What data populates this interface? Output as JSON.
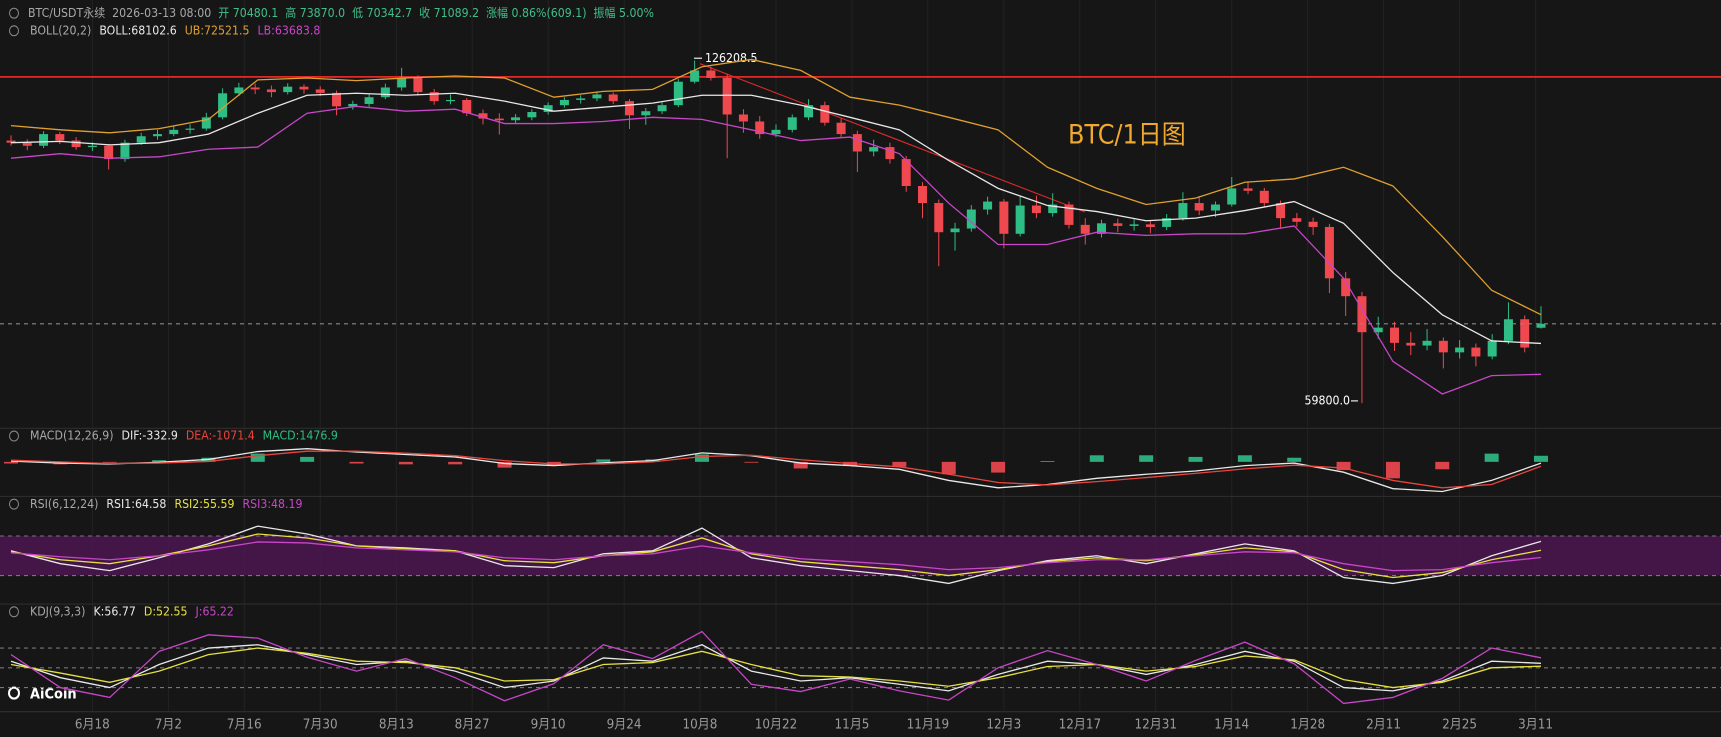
{
  "header": {
    "items": [
      "BTC/USDT永续",
      "2026-03-13 08:00",
      "开 70480.1",
      "高 73870.0",
      "低 70342.7",
      "收 71089.2",
      "涨幅 0.86%(609.1)",
      "振幅 5.00%"
    ]
  },
  "logo": "AiCoin",
  "chart_data": [
    {
      "type": "candlestick",
      "indicator": "BOLL(20,2)",
      "log": true,
      "ylim": [
        56600,
        144000
      ],
      "up_color": "#2ebd85",
      "down_color": "#f0484f",
      "watermark": "BTC/1日图",
      "high_label": "126208.5",
      "low_label": "59800.0",
      "xticks": [
        {
          "value": 5,
          "label": "6月18"
        },
        {
          "value": 9.67,
          "label": "7月2"
        },
        {
          "value": 14.33,
          "label": "7月16"
        },
        {
          "value": 19,
          "label": "7月30"
        },
        {
          "value": 23.67,
          "label": "8月13"
        },
        {
          "value": 28.33,
          "label": "8月27"
        },
        {
          "value": 33,
          "label": "9月10"
        },
        {
          "value": 37.67,
          "label": "9月24"
        },
        {
          "value": 42.33,
          "label": "10月8"
        },
        {
          "value": 47,
          "label": "10月22"
        },
        {
          "value": 51.67,
          "label": "11月5"
        },
        {
          "value": 56.33,
          "label": "11月19"
        },
        {
          "value": 61,
          "label": "12月3"
        },
        {
          "value": 65.67,
          "label": "12月17"
        },
        {
          "value": 70.33,
          "label": "12月31"
        },
        {
          "value": 75,
          "label": "1月14"
        },
        {
          "value": 79.67,
          "label": "1月28"
        },
        {
          "value": 84.33,
          "label": "2月11"
        },
        {
          "value": 89,
          "label": "2月25"
        },
        {
          "value": 93.67,
          "label": "3月11"
        }
      ],
      "ohlc": [
        [
          106000,
          107200,
          104800,
          105500
        ],
        [
          105500,
          106300,
          103800,
          104800
        ],
        [
          104800,
          108200,
          104300,
          107500
        ],
        [
          107500,
          108000,
          105200,
          106000
        ],
        [
          106000,
          106800,
          103900,
          104500
        ],
        [
          104500,
          105600,
          103600,
          104800
        ],
        [
          104800,
          105200,
          99500,
          101800
        ],
        [
          101800,
          106200,
          101200,
          105500
        ],
        [
          105500,
          107800,
          105000,
          107000
        ],
        [
          107000,
          108500,
          106200,
          107500
        ],
        [
          107500,
          109400,
          107000,
          108500
        ],
        [
          108500,
          109800,
          107600,
          108800
        ],
        [
          108800,
          112600,
          108300,
          111500
        ],
        [
          111500,
          118800,
          111000,
          117500
        ],
        [
          117500,
          120200,
          116800,
          119000
        ],
        [
          119000,
          120000,
          117300,
          118500
        ],
        [
          118500,
          119500,
          116500,
          117800
        ],
        [
          117800,
          120100,
          117200,
          119200
        ],
        [
          119200,
          119800,
          117400,
          118500
        ],
        [
          118500,
          119300,
          116800,
          117600
        ],
        [
          117600,
          118200,
          112000,
          114200
        ],
        [
          114200,
          115600,
          113400,
          114800
        ],
        [
          114800,
          117300,
          114100,
          116500
        ],
        [
          116500,
          120000,
          116000,
          119000
        ],
        [
          119000,
          124200,
          118200,
          121500
        ],
        [
          121500,
          122200,
          116900,
          117800
        ],
        [
          117800,
          118600,
          114600,
          115500
        ],
        [
          115500,
          117200,
          114700,
          115800
        ],
        [
          115800,
          116300,
          111800,
          112500
        ],
        [
          112500,
          113400,
          109800,
          111200
        ],
        [
          111200,
          112500,
          107400,
          110800
        ],
        [
          110800,
          112300,
          110000,
          111500
        ],
        [
          111500,
          113500,
          110800,
          112800
        ],
        [
          112800,
          115200,
          112200,
          114500
        ],
        [
          114500,
          116500,
          113900,
          115800
        ],
        [
          115800,
          117000,
          114900,
          116200
        ],
        [
          116200,
          118000,
          115500,
          117200
        ],
        [
          117200,
          117700,
          114800,
          115500
        ],
        [
          115500,
          116000,
          108700,
          112000
        ],
        [
          112000,
          113800,
          109700,
          113000
        ],
        [
          113000,
          115200,
          112300,
          114500
        ],
        [
          114500,
          121200,
          114000,
          120500
        ],
        [
          120500,
          126208.5,
          120000,
          123500
        ],
        [
          123500,
          124500,
          120800,
          121500
        ],
        [
          121500,
          122500,
          102000,
          112200
        ],
        [
          112200,
          113500,
          107800,
          110500
        ],
        [
          110500,
          111800,
          106400,
          107500
        ],
        [
          107500,
          109800,
          106800,
          108500
        ],
        [
          108500,
          112200,
          107900,
          111500
        ],
        [
          111500,
          116000,
          110800,
          114500
        ],
        [
          114500,
          115400,
          109500,
          110200
        ],
        [
          110200,
          111200,
          106600,
          107500
        ],
        [
          107500,
          108300,
          99000,
          103500
        ],
        [
          103500,
          106200,
          102400,
          104500
        ],
        [
          104500,
          105500,
          100800,
          101800
        ],
        [
          101800,
          102500,
          94800,
          96000
        ],
        [
          96000,
          96800,
          89500,
          92500
        ],
        [
          92500,
          93200,
          80600,
          86800
        ],
        [
          86800,
          88600,
          83400,
          87500
        ],
        [
          87500,
          92100,
          86900,
          91200
        ],
        [
          91200,
          93800,
          90200,
          92800
        ],
        [
          92800,
          93300,
          83800,
          86500
        ],
        [
          86500,
          93900,
          86000,
          92000
        ],
        [
          92000,
          94000,
          89500,
          90500
        ],
        [
          90500,
          94500,
          89800,
          92200
        ],
        [
          92200,
          92800,
          87500,
          88200
        ],
        [
          88200,
          89500,
          84500,
          86500
        ],
        [
          86500,
          89200,
          85800,
          88500
        ],
        [
          88500,
          89400,
          86800,
          88000
        ],
        [
          88000,
          89300,
          87100,
          88300
        ],
        [
          88300,
          88900,
          86600,
          87800
        ],
        [
          87800,
          90300,
          87200,
          89500
        ],
        [
          89500,
          94700,
          89000,
          92500
        ],
        [
          92500,
          93900,
          90100,
          91000
        ],
        [
          91000,
          92800,
          89700,
          92200
        ],
        [
          92200,
          97900,
          91800,
          95500
        ],
        [
          95500,
          97000,
          94300,
          95000
        ],
        [
          95000,
          95600,
          91800,
          92500
        ],
        [
          92500,
          93000,
          87500,
          89500
        ],
        [
          89500,
          90500,
          87800,
          88800
        ],
        [
          88800,
          89600,
          86300,
          87800
        ],
        [
          87800,
          88400,
          76000,
          78500
        ],
        [
          78500,
          79600,
          72300,
          75500
        ],
        [
          75500,
          76200,
          59800,
          69800
        ],
        [
          69800,
          72200,
          68800,
          70500
        ],
        [
          70500,
          71400,
          67000,
          68200
        ],
        [
          68200,
          69800,
          66400,
          67800
        ],
        [
          67800,
          70300,
          67100,
          68500
        ],
        [
          68500,
          69000,
          64500,
          66800
        ],
        [
          66800,
          68600,
          65900,
          67500
        ],
        [
          67500,
          68100,
          64800,
          66200
        ],
        [
          66200,
          69500,
          65800,
          68500
        ],
        [
          68500,
          74500,
          68000,
          71800
        ],
        [
          71800,
          72400,
          66800,
          67500
        ],
        [
          70480.1,
          73870.0,
          70342.7,
          71089.2
        ]
      ],
      "lines": [
        {
          "label": "BOLL:68102.6",
          "color": "#e8e8e8",
          "values": [
            105500,
            105800,
            105000,
            105500,
            107500,
            112500,
            117000,
            117500,
            117000,
            117500,
            115500,
            113000,
            114000,
            115000,
            117000,
            117000,
            114500,
            111500,
            108500,
            101500,
            95500,
            92000,
            90800,
            89000,
            89500,
            91000,
            92800,
            88500,
            79500,
            72500,
            68500,
            68102.6
          ]
        },
        {
          "label": "UB:72521.5",
          "color": "#e0a030",
          "values": [
            109500,
            108500,
            107800,
            108800,
            111000,
            121000,
            121500,
            120800,
            121500,
            122000,
            121500,
            116500,
            118000,
            118500,
            124500,
            126500,
            123500,
            116500,
            114500,
            111500,
            108500,
            100000,
            95500,
            92200,
            93500,
            96800,
            97500,
            100000,
            96000,
            86000,
            76500,
            72521.5
          ]
        },
        {
          "label": "LB:63683.8",
          "color": "#c846c8",
          "values": [
            102000,
            103000,
            102000,
            102300,
            104000,
            104500,
            112500,
            114200,
            113000,
            113500,
            110000,
            110000,
            110500,
            111500,
            111000,
            108500,
            106000,
            106800,
            103000,
            92500,
            84500,
            84500,
            86800,
            86200,
            86500,
            86500,
            88000,
            78500,
            65500,
            61000,
            63500,
            63683.8
          ]
        }
      ]
    },
    {
      "type": "macd",
      "indicator": "MACD(12,26,9)",
      "ylim": [
        -10000,
        6000
      ],
      "lines": [
        {
          "label": "DIF:-332.9",
          "color": "#e8e8e8",
          "values": [
            200,
            -300,
            -500,
            -100,
            600,
            2500,
            3200,
            2400,
            1800,
            1200,
            -400,
            -900,
            -200,
            300,
            2200,
            1500,
            -300,
            -900,
            -1800,
            -4500,
            -6300,
            -5500,
            -4000,
            -3000,
            -2200,
            -900,
            -300,
            -2500,
            -6500,
            -7200,
            -4500,
            -332.9
          ]
        },
        {
          "label": "DEA:-1071.4",
          "color": "#e8453c",
          "values": [
            400,
            0,
            -400,
            -300,
            100,
            1500,
            2600,
            2600,
            2100,
            1500,
            300,
            -500,
            -500,
            0,
            1300,
            1600,
            500,
            -400,
            -1200,
            -3000,
            -5000,
            -5600,
            -4800,
            -3800,
            -2800,
            -1700,
            -800,
            -1500,
            -4500,
            -6300,
            -5500,
            -1071.4
          ]
        }
      ],
      "histogram": {
        "label": "MACD:1476.9",
        "up_color": "#2ebd85",
        "down_color": "#f0484f",
        "values": [
          -400,
          -600,
          -200,
          400,
          1000,
          2000,
          1200,
          -400,
          -600,
          -600,
          -1400,
          -800,
          600,
          600,
          1800,
          -200,
          -1600,
          -1000,
          -1200,
          -3000,
          -2600,
          200,
          1600,
          1600,
          1200,
          1600,
          1000,
          -2000,
          -4000,
          -1800,
          2000,
          1476.9
        ]
      }
    },
    {
      "type": "line",
      "indicator": "RSI(6,12,24)",
      "ylim": [
        0,
        100
      ],
      "band": [
        30,
        70
      ],
      "band_color": "#4b1650",
      "dashed": [
        30,
        70
      ],
      "lines": [
        {
          "label": "RSI1:64.58",
          "color": "#e8e8e8",
          "values": [
            55,
            42,
            35,
            48,
            62,
            80,
            72,
            60,
            58,
            55,
            40,
            38,
            52,
            55,
            78,
            48,
            40,
            35,
            30,
            22,
            35,
            45,
            50,
            42,
            52,
            62,
            55,
            28,
            22,
            30,
            50,
            64.58
          ]
        },
        {
          "label": "RSI2:55.59",
          "color": "#e6e040",
          "values": [
            54,
            46,
            42,
            50,
            60,
            72,
            68,
            60,
            57,
            55,
            45,
            43,
            50,
            54,
            68,
            52,
            44,
            40,
            36,
            30,
            36,
            44,
            48,
            45,
            51,
            58,
            54,
            36,
            28,
            33,
            46,
            55.59
          ]
        },
        {
          "label": "RSI3:48.19",
          "color": "#c846c8",
          "values": [
            53,
            49,
            46,
            50,
            56,
            64,
            63,
            58,
            56,
            54,
            48,
            46,
            50,
            52,
            60,
            53,
            47,
            44,
            41,
            36,
            38,
            43,
            46,
            46,
            50,
            54,
            53,
            42,
            35,
            36,
            43,
            48.19
          ]
        }
      ]
    },
    {
      "type": "line",
      "indicator": "KDJ(9,3,3)",
      "ylim": [
        0,
        100
      ],
      "dashed": [
        20,
        50,
        80
      ],
      "lines": [
        {
          "label": "K:56.77",
          "color": "#e8e8e8",
          "values": [
            60,
            35,
            20,
            55,
            80,
            85,
            70,
            55,
            60,
            45,
            20,
            30,
            65,
            60,
            85,
            45,
            30,
            35,
            25,
            15,
            40,
            60,
            55,
            40,
            55,
            75,
            60,
            20,
            15,
            30,
            60,
            56.77
          ]
        },
        {
          "label": "D:52.55",
          "color": "#e6e040",
          "values": [
            55,
            42,
            28,
            45,
            70,
            80,
            72,
            60,
            58,
            50,
            30,
            32,
            55,
            58,
            75,
            55,
            38,
            36,
            30,
            22,
            35,
            52,
            55,
            45,
            52,
            68,
            62,
            32,
            20,
            28,
            50,
            52.55
          ]
        },
        {
          "label": "J:65.22",
          "color": "#c846c8",
          "values": [
            70,
            20,
            5,
            75,
            100,
            95,
            66,
            45,
            64,
            35,
            0,
            26,
            85,
            64,
            105,
            25,
            14,
            33,
            15,
            1,
            50,
            76,
            55,
            30,
            61,
            89,
            56,
            -4,
            5,
            34,
            80,
            65.22
          ]
        }
      ]
    }
  ]
}
